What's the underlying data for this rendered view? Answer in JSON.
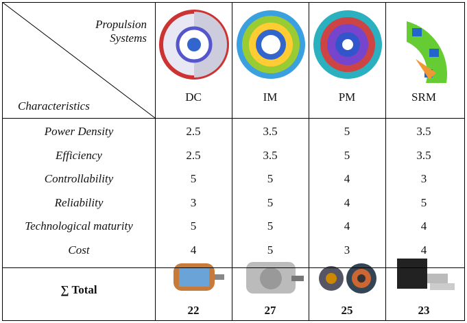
{
  "header": {
    "column_label": "Propulsion Systems",
    "row_label": "Characteristics",
    "columns": [
      "DC",
      "IM",
      "PM",
      "SRM"
    ]
  },
  "rows": [
    {
      "label": "Power Density",
      "values": [
        "2.5",
        "3.5",
        "5",
        "3.5"
      ]
    },
    {
      "label": "Efficiency",
      "values": [
        "2.5",
        "3.5",
        "5",
        "3.5"
      ]
    },
    {
      "label": "Controllability",
      "values": [
        "5",
        "5",
        "4",
        "3"
      ]
    },
    {
      "label": "Reliability",
      "values": [
        "3",
        "5",
        "4",
        "5"
      ]
    },
    {
      "label": "Technological maturity",
      "values": [
        "5",
        "5",
        "4",
        "4"
      ]
    },
    {
      "label": "Cost",
      "values": [
        "4",
        "5",
        "3",
        "4"
      ]
    }
  ],
  "total": {
    "label": "∑ Total",
    "values": [
      "22",
      "27",
      "25",
      "23"
    ]
  }
}
